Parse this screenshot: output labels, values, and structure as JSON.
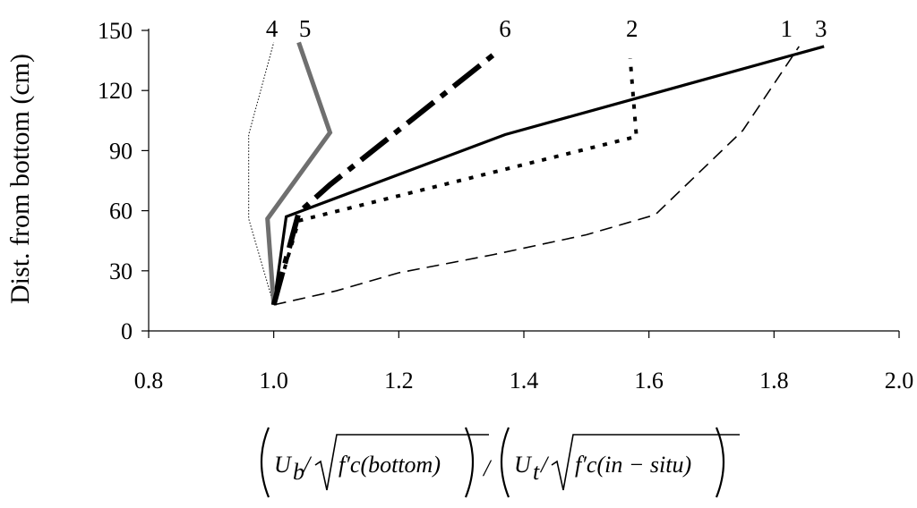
{
  "chart_data": {
    "type": "line",
    "title": "",
    "xlabel": "",
    "ylabel": "Dist. from bottom (cm)",
    "xlim": [
      0.8,
      2.0
    ],
    "ylim": [
      0,
      150
    ],
    "x_ticks": [
      0.8,
      1.0,
      1.2,
      1.4,
      1.6,
      1.8,
      2.0
    ],
    "y_ticks": [
      0,
      30,
      60,
      90,
      120,
      150
    ],
    "x_tick_labels": [
      "0.8",
      "1.0",
      "1.2",
      "1.4",
      "1.6",
      "1.8",
      "2.0"
    ],
    "y_tick_labels": [
      "0",
      "30",
      "60",
      "90",
      "120",
      "150"
    ],
    "grid": false,
    "legend": "none",
    "series": [
      {
        "name": "1",
        "color": "#000000",
        "points": [
          [
            1.0,
            13
          ],
          [
            1.02,
            57
          ],
          [
            1.37,
            98
          ],
          [
            1.88,
            142
          ]
        ]
      },
      {
        "name": "2",
        "color": "#000000",
        "points": [
          [
            1.0,
            13
          ],
          [
            1.04,
            55
          ],
          [
            1.58,
            97
          ],
          [
            1.57,
            136
          ]
        ]
      },
      {
        "name": "3",
        "color": "#000000",
        "points": [
          [
            1.0,
            13
          ],
          [
            1.1,
            20
          ],
          [
            1.2,
            29
          ],
          [
            1.35,
            38
          ],
          [
            1.5,
            48
          ],
          [
            1.61,
            58
          ],
          [
            1.75,
            100
          ],
          [
            1.84,
            142
          ]
        ]
      },
      {
        "name": "4",
        "color": "#000000",
        "points": [
          [
            1.0,
            13
          ],
          [
            0.96,
            56
          ],
          [
            0.96,
            98
          ],
          [
            1.0,
            144
          ]
        ]
      },
      {
        "name": "5",
        "color": "#6f6f6f",
        "points": [
          [
            1.0,
            13
          ],
          [
            0.99,
            56
          ],
          [
            1.09,
            99
          ],
          [
            1.04,
            144
          ]
        ]
      },
      {
        "name": "6",
        "color": "#000000",
        "points": [
          [
            1.0,
            13
          ],
          [
            1.04,
            59
          ],
          [
            1.09,
            73
          ],
          [
            1.36,
            140
          ]
        ]
      }
    ],
    "series_labels": [
      {
        "text": "4",
        "x": 0.997,
        "y": 151
      },
      {
        "text": "5",
        "x": 1.05,
        "y": 151
      },
      {
        "text": "6",
        "x": 1.37,
        "y": 151
      },
      {
        "text": "2",
        "x": 1.573,
        "y": 151
      },
      {
        "text": "1",
        "x": 1.82,
        "y": 151
      },
      {
        "text": "3",
        "x": 1.875,
        "y": 151
      }
    ],
    "xlabel_formula": {
      "left_var": "U",
      "left_sub": "b",
      "left_sqrt": "f′c(bottom)",
      "right_var": "U",
      "right_sub": "t",
      "right_sqrt": "f′c(in − situ)"
    }
  }
}
